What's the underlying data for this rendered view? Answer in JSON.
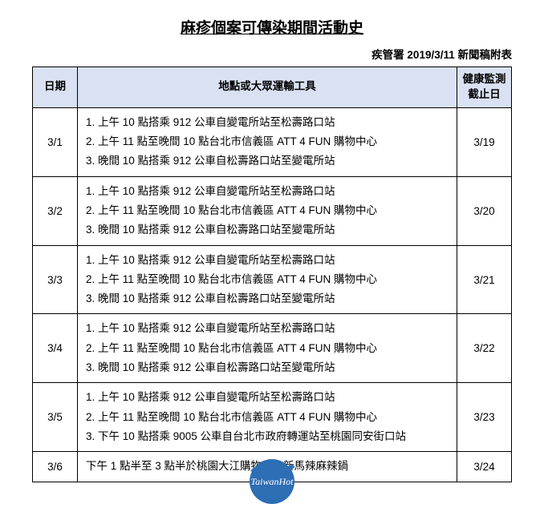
{
  "title": "麻疹個案可傳染期間活動史",
  "subtitle": "疾管署 2019/3/11 新聞稿附表",
  "columns": {
    "date": "日期",
    "location": "地點或大眾運輸工具",
    "deadline_line1": "健康監測",
    "deadline_line2": "截止日"
  },
  "rows": [
    {
      "date": "3/1",
      "items": [
        "上午 10 點搭乘 912 公車自變電所站至松壽路口站",
        "上午 11 點至晚間 10 點台北市信義區 ATT 4 FUN  購物中心",
        "晚間 10 點搭乘 912 公車自松壽路口站至變電所站"
      ],
      "deadline": "3/19"
    },
    {
      "date": "3/2",
      "items": [
        "上午 10 點搭乘 912 公車自變電所站至松壽路口站",
        "上午 11 點至晚間 10 點台北市信義區 ATT 4 FUN  購物中心",
        "晚間 10 點搭乘 912 公車自松壽路口站至變電所站"
      ],
      "deadline": "3/20"
    },
    {
      "date": "3/3",
      "items": [
        "上午 10 點搭乘 912 公車自變電所站至松壽路口站",
        "上午 11 點至晚間 10 點台北市信義區 ATT 4 FUN 購物中心",
        "晚間 10 點搭乘 912 公車自松壽路口站至變電所站"
      ],
      "deadline": "3/21"
    },
    {
      "date": "3/4",
      "items": [
        "上午 10 點搭乘 912 公車自變電所站至松壽路口站",
        "上午 11 點至晚間 10 點台北市信義區 ATT 4 FUN 購物中心",
        "晚間 10 點搭乘 912 公車自松壽路口站至變電所站"
      ],
      "deadline": "3/22"
    },
    {
      "date": "3/5",
      "items": [
        "上午 10 點搭乘 912 公車自變電所站至松壽路口站",
        "上午 11 點至晚間 10 點台北市信義區 ATT 4 FUN 購物中心",
        "下午 10 點搭乘 9005 公車自台北市政府轉運站至桃園同安街口站"
      ],
      "deadline": "3/23"
    },
    {
      "date": "3/6",
      "single": "下午 1 點半至 3 點半於桃園大江購物中心新馬辣麻辣鍋",
      "deadline": "3/24"
    }
  ],
  "logo": {
    "text": "TaiwanHot",
    "bg_color": "#2d6eb4",
    "text_color": "#ffffff"
  },
  "colors": {
    "header_bg": "#d9e1f2",
    "border": "#000000",
    "text": "#000000",
    "page_bg": "#ffffff"
  }
}
